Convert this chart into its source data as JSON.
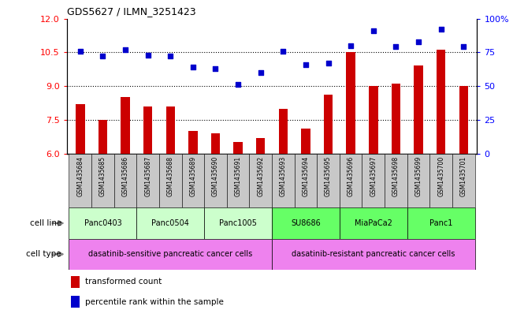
{
  "title": "GDS5627 / ILMN_3251423",
  "samples": [
    "GSM1435684",
    "GSM1435685",
    "GSM1435686",
    "GSM1435687",
    "GSM1435688",
    "GSM1435689",
    "GSM1435690",
    "GSM1435691",
    "GSM1435692",
    "GSM1435693",
    "GSM1435694",
    "GSM1435695",
    "GSM1435696",
    "GSM1435697",
    "GSM1435698",
    "GSM1435699",
    "GSM1435700",
    "GSM1435701"
  ],
  "transformed_count": [
    8.2,
    7.5,
    8.5,
    8.1,
    8.1,
    7.0,
    6.9,
    6.5,
    6.7,
    8.0,
    7.1,
    8.6,
    10.5,
    9.0,
    9.1,
    9.9,
    10.6,
    9.0
  ],
  "percentile_rank": [
    76,
    72,
    77,
    73,
    72,
    64,
    63,
    51,
    60,
    76,
    66,
    67,
    80,
    91,
    79,
    83,
    92,
    79
  ],
  "cell_lines": [
    {
      "name": "Panc0403",
      "start": 0,
      "end": 2,
      "color": "#ccffcc"
    },
    {
      "name": "Panc0504",
      "start": 3,
      "end": 5,
      "color": "#ccffcc"
    },
    {
      "name": "Panc1005",
      "start": 6,
      "end": 8,
      "color": "#ccffcc"
    },
    {
      "name": "SU8686",
      "start": 9,
      "end": 11,
      "color": "#66ff66"
    },
    {
      "name": "MiaPaCa2",
      "start": 12,
      "end": 14,
      "color": "#66ff66"
    },
    {
      "name": "Panc1",
      "start": 15,
      "end": 17,
      "color": "#66ff66"
    }
  ],
  "cell_types": [
    {
      "name": "dasatinib-sensitive pancreatic cancer cells",
      "start": 0,
      "end": 8,
      "color": "#ee82ee"
    },
    {
      "name": "dasatinib-resistant pancreatic cancer cells",
      "start": 9,
      "end": 17,
      "color": "#ee82ee"
    }
  ],
  "ylim_left": [
    6,
    12
  ],
  "yticks_left": [
    6,
    7.5,
    9,
    10.5,
    12
  ],
  "ylim_right": [
    0,
    100
  ],
  "yticks_right": [
    0,
    25,
    50,
    75,
    100
  ],
  "bar_color": "#cc0000",
  "dot_color": "#0000cc",
  "grid_color": "#000000",
  "bg_color": "#ffffff",
  "xtick_bg": "#c8c8c8",
  "legend_bar_label": "transformed count",
  "legend_dot_label": "percentile rank within the sample",
  "cell_line_label": "cell line",
  "cell_type_label": "cell type"
}
